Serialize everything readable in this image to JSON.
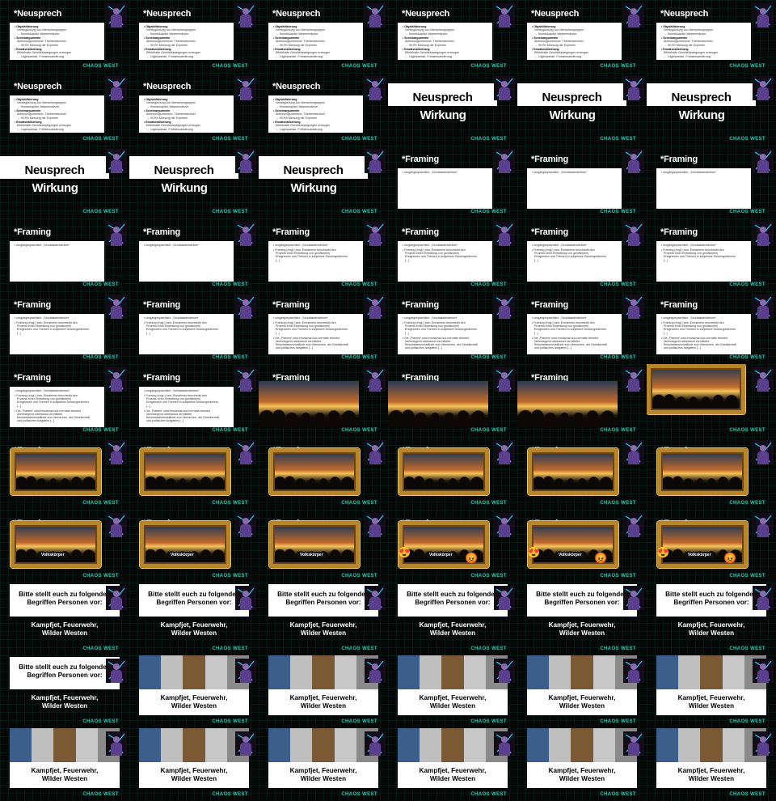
{
  "footer": "CHAOS WEST",
  "slides": [
    {
      "type": "neusprech_list",
      "title": "*Neusprech"
    },
    {
      "type": "neusprech_list",
      "title": "*Neusprech"
    },
    {
      "type": "neusprech_list",
      "title": "*Neusprech"
    },
    {
      "type": "neusprech_list",
      "title": "*Neusprech"
    },
    {
      "type": "neusprech_list",
      "title": "*Neusprech"
    },
    {
      "type": "neusprech_list",
      "title": "*Neusprech"
    },
    {
      "type": "neusprech_list",
      "title": "*Neusprech"
    },
    {
      "type": "neusprech_list",
      "title": "*Neusprech"
    },
    {
      "type": "neusprech_list",
      "title": "*Neusprech"
    },
    {
      "type": "wirkung"
    },
    {
      "type": "wirkung"
    },
    {
      "type": "wirkung"
    },
    {
      "type": "wirkung"
    },
    {
      "type": "wirkung"
    },
    {
      "type": "wirkung"
    },
    {
      "type": "framing",
      "title": "*Framing",
      "items": 1
    },
    {
      "type": "framing",
      "title": "*Framing",
      "items": 1
    },
    {
      "type": "framing",
      "title": "*Framing",
      "items": 1
    },
    {
      "type": "framing",
      "title": "*Framing",
      "items": 1
    },
    {
      "type": "framing",
      "title": "*Framing",
      "items": 1
    },
    {
      "type": "framing",
      "title": "*Framing",
      "items": 2
    },
    {
      "type": "framing",
      "title": "*Framing",
      "items": 2
    },
    {
      "type": "framing",
      "title": "*Framing",
      "items": 2
    },
    {
      "type": "framing",
      "title": "*Framing",
      "items": 2
    },
    {
      "type": "framing",
      "title": "*Framing",
      "items": 2
    },
    {
      "type": "framing",
      "title": "*Framing",
      "items": 2
    },
    {
      "type": "framing",
      "title": "*Framing",
      "items": 3
    },
    {
      "type": "framing",
      "title": "*Framing",
      "items": 3
    },
    {
      "type": "framing",
      "title": "*Framing",
      "items": 3
    },
    {
      "type": "framing",
      "title": "*Framing",
      "items": 3
    },
    {
      "type": "framing",
      "title": "*Framing",
      "items": 3
    },
    {
      "type": "framing",
      "title": "*Framing",
      "items": 3
    },
    {
      "type": "photo",
      "title": "*Framing"
    },
    {
      "type": "photo",
      "title": "*Framing"
    },
    {
      "type": "photo",
      "title": "*Framing"
    },
    {
      "type": "frame_photo_only"
    },
    {
      "type": "frame_photo",
      "title": "*Framing"
    },
    {
      "type": "frame_photo",
      "title": "*Framing"
    },
    {
      "type": "frame_photo",
      "title": "*Framing"
    },
    {
      "type": "frame_photo",
      "title": "*Framing"
    },
    {
      "type": "frame_photo",
      "title": "*Framing"
    },
    {
      "type": "frame_photo",
      "title": "*Framing"
    },
    {
      "type": "frame_plate",
      "title": "*Framing"
    },
    {
      "type": "frame_plate",
      "title": "*Framing"
    },
    {
      "type": "frame_plate",
      "title": "*Framing"
    },
    {
      "type": "frame_plate_emoji",
      "title": "*Framing"
    },
    {
      "type": "frame_plate_emoji",
      "title": "*Framing"
    },
    {
      "type": "frame_plate_emoji",
      "title": "*Framing"
    },
    {
      "type": "question"
    },
    {
      "type": "question"
    },
    {
      "type": "question"
    },
    {
      "type": "question"
    },
    {
      "type": "question"
    },
    {
      "type": "question"
    },
    {
      "type": "question"
    },
    {
      "type": "question_photos"
    },
    {
      "type": "question_photos"
    },
    {
      "type": "question_photos"
    },
    {
      "type": "question_photos"
    },
    {
      "type": "question_photos"
    },
    {
      "type": "question_photos"
    },
    {
      "type": "question_photos"
    },
    {
      "type": "question_photos"
    },
    {
      "type": "question_photos"
    },
    {
      "type": "question_photos"
    },
    {
      "type": "question_photos"
    }
  ],
  "neusprech_items": [
    {
      "head": "Objektifizierung",
      "line1": "Verdinglichung von Menschengruppen",
      "line2": "→ Humankapital, Messermänner"
    },
    {
      "head": "Scheinargumente",
      "line1": "Ablenkungsmanöver, Themenwechsel",
      "line2": "→ 99,9% Meinung der Experten"
    },
    {
      "head": "Emotionalisierung",
      "line1": "Effekthafte Gemütsbewegungen erzeugen",
      "line2": "→ Lügenpresse, Frühsexualisierung"
    }
  ],
  "wirkung": {
    "line1": "Neusprech",
    "line2": "Wirkung"
  },
  "framing_items": [
    "umgangssprachlich: „Schubladendenken“",
    "Framing (engl.) bzw. Einrahmen beschreibt den Prozess einer Einbettung von (politischen) Ereignissen und Themen in subjektive Deutungsrahmen [...]",
    "Die „Frames“ sind emotional und normativ besetzt, überwiegend unbewusst vermittelte Bewusstseinszustände zum Menschen, der Gesellschaft und politischen Aufgaben [...]"
  ],
  "plate_label": "Volkskörper",
  "emojis": {
    "left": "😍",
    "right": "😡"
  },
  "question": {
    "line1": "Bitte stellt euch zu folgenden",
    "line2": "Begriffen Personen vor:",
    "line3": "Kampfjet, Feuerwehr,",
    "line4": "Wilder Westen"
  },
  "colors": {
    "accent": "#31c9b6",
    "background": "#050505",
    "frame": "#b8862a"
  }
}
